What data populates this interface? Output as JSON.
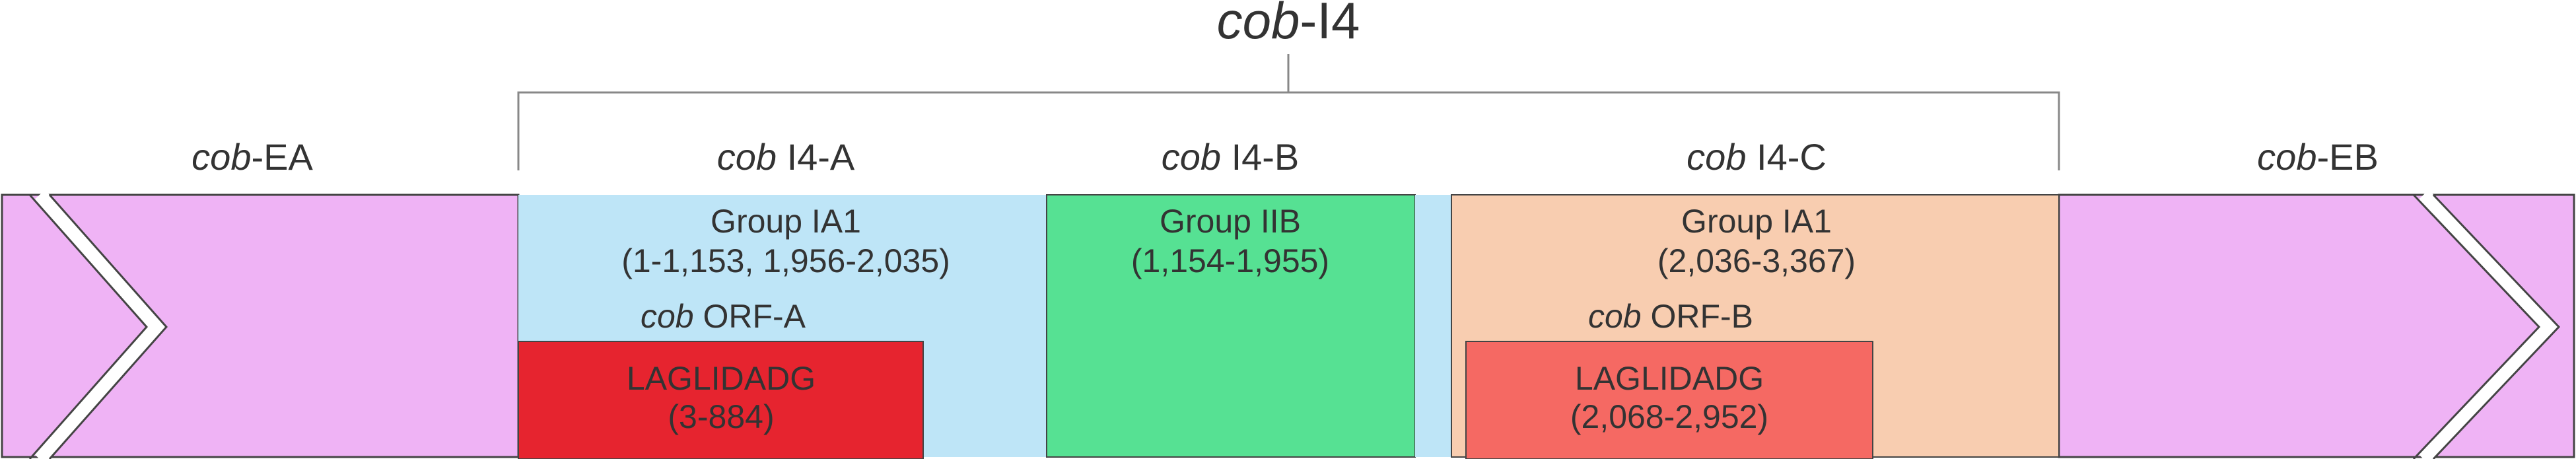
{
  "colors": {
    "exon": "#EFB3F5",
    "group_ia1_a": "#BEE5F7",
    "group_iib": "#56E193",
    "group_ia1_c": "#F8CDB0",
    "laglidadg_a": "#E6242F",
    "laglidadg_b": "#F56963",
    "outline": "#444444",
    "text": "#333333",
    "bracket": "#888888"
  },
  "intron": {
    "title_italic": "cob",
    "title_rest": "-I4"
  },
  "exons": {
    "ea": {
      "italic": "cob",
      "rest": "-EA"
    },
    "eb": {
      "italic": "cob",
      "rest": "-EB"
    }
  },
  "subunits": {
    "a": {
      "italic": "cob",
      "rest": " I4-A"
    },
    "b": {
      "italic": "cob",
      "rest": " I4-B"
    },
    "c": {
      "italic": "cob",
      "rest": " I4-C"
    }
  },
  "groups": {
    "a": {
      "name": "Group IA1",
      "range": "(1-1,153, 1,956-2,035)"
    },
    "b": {
      "name": "Group IIB",
      "range": "(1,154-1,955)"
    },
    "c": {
      "name": "Group IA1",
      "range": "(2,036-3,367)"
    }
  },
  "orfs": {
    "a": {
      "italic": "cob",
      "rest": " ORF-A"
    },
    "b": {
      "italic": "cob",
      "rest": " ORF-B"
    }
  },
  "laglidadg": {
    "a": {
      "name": "LAGLIDADG",
      "range": "(3-884)"
    },
    "b": {
      "name": "LAGLIDADG",
      "range": "(2,068-2,952)"
    }
  }
}
